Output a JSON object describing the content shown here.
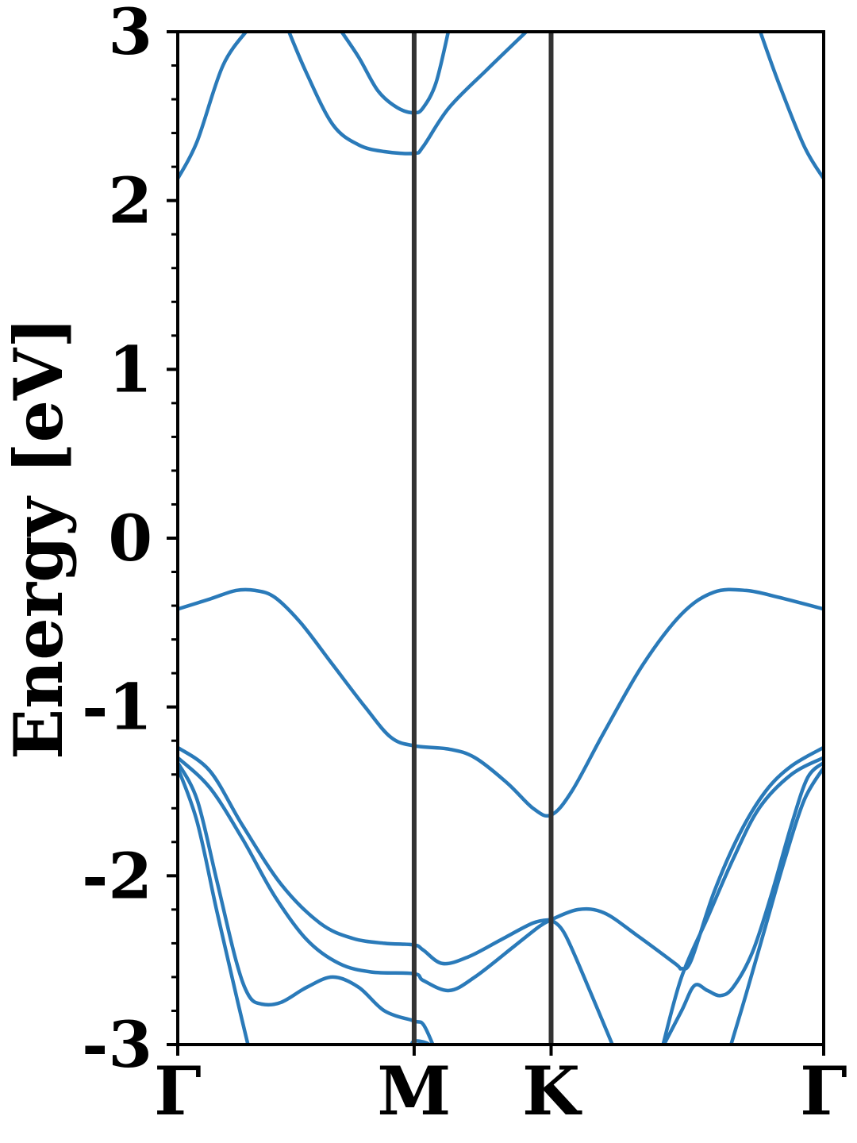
{
  "chart_data": {
    "type": "line",
    "title": "",
    "ylabel": "Energy [eV]",
    "xlabel": "",
    "ylim": [
      -3,
      3
    ],
    "xlim": [
      0,
      1
    ],
    "yticks": [
      -3,
      -2,
      -1,
      0,
      1,
      2,
      3
    ],
    "ytick_labels": [
      "-3",
      "-2",
      "-1",
      "0",
      "1",
      "2",
      "3"
    ],
    "kpoints": [
      {
        "label": "Γ",
        "x": 0.0
      },
      {
        "label": "M",
        "x": 0.366
      },
      {
        "label": "K",
        "x": 0.578
      },
      {
        "label": "Γ",
        "x": 1.0
      }
    ],
    "line_color": "#2a7ab9",
    "vline_color": "#333333",
    "series": [
      {
        "values": [
          [
            0.0,
            2.13
          ],
          [
            0.03,
            2.35
          ],
          [
            0.07,
            2.8
          ],
          [
            0.11,
            3.02
          ]
        ]
      },
      {
        "values": [
          [
            0.17,
            3.02
          ],
          [
            0.2,
            2.75
          ],
          [
            0.24,
            2.45
          ],
          [
            0.28,
            2.33
          ],
          [
            0.32,
            2.29
          ],
          [
            0.366,
            2.28
          ],
          [
            0.38,
            2.32
          ],
          [
            0.42,
            2.55
          ],
          [
            0.48,
            2.78
          ],
          [
            0.545,
            3.02
          ]
        ]
      },
      {
        "values": [
          [
            0.25,
            3.02
          ],
          [
            0.28,
            2.85
          ],
          [
            0.31,
            2.65
          ],
          [
            0.34,
            2.55
          ],
          [
            0.366,
            2.52
          ],
          [
            0.38,
            2.55
          ],
          [
            0.4,
            2.7
          ],
          [
            0.42,
            3.02
          ]
        ]
      },
      {
        "values": [
          [
            0.9,
            3.02
          ],
          [
            0.93,
            2.7
          ],
          [
            0.97,
            2.32
          ],
          [
            1.0,
            2.13
          ]
        ]
      },
      {
        "values": [
          [
            0.0,
            -0.42
          ],
          [
            0.05,
            -0.36
          ],
          [
            0.09,
            -0.31
          ],
          [
            0.12,
            -0.31
          ],
          [
            0.15,
            -0.35
          ],
          [
            0.19,
            -0.5
          ],
          [
            0.24,
            -0.75
          ],
          [
            0.29,
            -1.0
          ],
          [
            0.33,
            -1.18
          ],
          [
            0.366,
            -1.23
          ],
          [
            0.42,
            -1.25
          ],
          [
            0.46,
            -1.3
          ],
          [
            0.51,
            -1.45
          ],
          [
            0.55,
            -1.6
          ],
          [
            0.578,
            -1.64
          ],
          [
            0.61,
            -1.5
          ],
          [
            0.66,
            -1.15
          ],
          [
            0.72,
            -0.75
          ],
          [
            0.78,
            -0.45
          ],
          [
            0.83,
            -0.32
          ],
          [
            0.88,
            -0.31
          ],
          [
            0.93,
            -0.35
          ],
          [
            1.0,
            -0.42
          ]
        ]
      },
      {
        "values": [
          [
            0.0,
            -1.24
          ],
          [
            0.05,
            -1.38
          ],
          [
            0.1,
            -1.7
          ],
          [
            0.16,
            -2.05
          ],
          [
            0.22,
            -2.28
          ],
          [
            0.27,
            -2.37
          ],
          [
            0.32,
            -2.4
          ],
          [
            0.366,
            -2.41
          ],
          [
            0.38,
            -2.44
          ],
          [
            0.41,
            -2.52
          ],
          [
            0.45,
            -2.48
          ],
          [
            0.5,
            -2.38
          ],
          [
            0.55,
            -2.28
          ],
          [
            0.578,
            -2.26
          ]
        ]
      },
      {
        "values": [
          [
            0.0,
            -1.3
          ],
          [
            0.05,
            -1.48
          ],
          [
            0.1,
            -1.78
          ],
          [
            0.15,
            -2.12
          ],
          [
            0.2,
            -2.38
          ],
          [
            0.25,
            -2.52
          ],
          [
            0.3,
            -2.57
          ],
          [
            0.366,
            -2.58
          ],
          [
            0.38,
            -2.62
          ],
          [
            0.42,
            -2.68
          ],
          [
            0.46,
            -2.6
          ],
          [
            0.52,
            -2.42
          ],
          [
            0.56,
            -2.3
          ],
          [
            0.578,
            -2.26
          ]
        ]
      },
      {
        "values": [
          [
            0.0,
            -1.33
          ],
          [
            0.03,
            -1.55
          ],
          [
            0.06,
            -2.02
          ],
          [
            0.09,
            -2.5
          ],
          [
            0.11,
            -2.71
          ],
          [
            0.13,
            -2.76
          ],
          [
            0.16,
            -2.75
          ],
          [
            0.2,
            -2.66
          ],
          [
            0.24,
            -2.6
          ],
          [
            0.28,
            -2.66
          ],
          [
            0.32,
            -2.8
          ],
          [
            0.366,
            -2.86
          ],
          [
            0.38,
            -2.88
          ],
          [
            0.395,
            -3.0
          ]
        ]
      },
      {
        "values": [
          [
            0.0,
            -1.36
          ],
          [
            0.03,
            -1.68
          ],
          [
            0.06,
            -2.2
          ],
          [
            0.09,
            -2.7
          ],
          [
            0.11,
            -3.02
          ]
        ]
      },
      {
        "values": [
          [
            0.36,
            -3.02
          ],
          [
            0.366,
            -2.98
          ],
          [
            0.385,
            -2.99
          ],
          [
            0.395,
            -3.02
          ]
        ]
      },
      {
        "values": [
          [
            0.578,
            -2.26
          ],
          [
            0.6,
            -2.35
          ],
          [
            0.64,
            -2.7
          ],
          [
            0.675,
            -3.02
          ]
        ]
      },
      {
        "values": [
          [
            0.578,
            -2.26
          ],
          [
            0.62,
            -2.2
          ],
          [
            0.66,
            -2.22
          ],
          [
            0.71,
            -2.35
          ],
          [
            0.77,
            -2.52
          ],
          [
            0.78,
            -2.55
          ],
          [
            0.795,
            -2.5
          ],
          [
            0.83,
            -2.1
          ],
          [
            0.87,
            -1.75
          ],
          [
            0.91,
            -1.5
          ],
          [
            0.95,
            -1.35
          ],
          [
            1.0,
            -1.24
          ]
        ]
      },
      {
        "values": [
          [
            0.75,
            -3.02
          ],
          [
            0.78,
            -2.8
          ],
          [
            0.8,
            -2.65
          ],
          [
            0.82,
            -2.68
          ],
          [
            0.84,
            -2.71
          ],
          [
            0.86,
            -2.66
          ],
          [
            0.89,
            -2.45
          ],
          [
            0.92,
            -2.1
          ],
          [
            0.95,
            -1.7
          ],
          [
            0.975,
            -1.42
          ],
          [
            1.0,
            -1.33
          ]
        ]
      },
      {
        "values": [
          [
            0.75,
            -3.02
          ],
          [
            0.78,
            -2.6
          ],
          [
            0.82,
            -2.25
          ],
          [
            0.86,
            -1.9
          ],
          [
            0.9,
            -1.6
          ],
          [
            0.95,
            -1.4
          ],
          [
            1.0,
            -1.3
          ]
        ]
      },
      {
        "values": [
          [
            0.855,
            -3.02
          ],
          [
            0.88,
            -2.7
          ],
          [
            0.91,
            -2.3
          ],
          [
            0.94,
            -1.9
          ],
          [
            0.97,
            -1.55
          ],
          [
            1.0,
            -1.36
          ]
        ]
      }
    ]
  }
}
